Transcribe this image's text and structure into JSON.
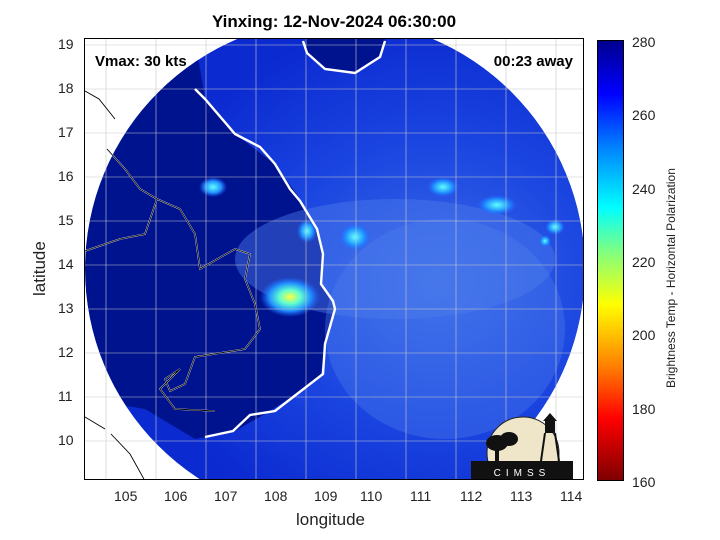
{
  "title": "Yinxing: 12-Nov-2024 06:30:00",
  "vmax_text": "Vmax: 30 kts",
  "away_text": "00:23 away",
  "x_axis": {
    "label": "longitude",
    "ticks": [
      "105",
      "106",
      "107",
      "108",
      "109",
      "110",
      "111",
      "112",
      "113",
      "114"
    ]
  },
  "y_axis": {
    "label": "latitude",
    "ticks": [
      "19",
      "18",
      "17",
      "16",
      "15",
      "14",
      "13",
      "12",
      "11",
      "10"
    ]
  },
  "colorbar": {
    "title": "Brightness Temp - Horizontal Polarization",
    "ticks": [
      "280",
      "260",
      "240",
      "220",
      "200",
      "180",
      "160"
    ],
    "min": 160,
    "max": 280,
    "colormap": "jet"
  },
  "logo": {
    "text": "CIMSS"
  },
  "colors": {
    "ocean": "#0a2fd6",
    "land": "#00138f",
    "coast": "#ffffff",
    "border": "#000000"
  }
}
